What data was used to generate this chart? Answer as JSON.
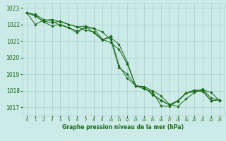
{
  "xlabel": "Graphe pression niveau de la mer (hPa)",
  "background_color": "#cceae7",
  "grid_color": "#aacccc",
  "line_color": "#1a6b1a",
  "ylim": [
    1016.5,
    1023.3
  ],
  "xlim": [
    -0.5,
    23.5
  ],
  "yticks": [
    1017,
    1018,
    1019,
    1020,
    1021,
    1022,
    1023
  ],
  "xticks": [
    0,
    1,
    2,
    3,
    4,
    5,
    6,
    7,
    8,
    9,
    10,
    11,
    12,
    13,
    14,
    15,
    16,
    17,
    18,
    19,
    20,
    21,
    22,
    23
  ],
  "series": [
    [
      1022.7,
      1022.6,
      1022.3,
      1022.2,
      1021.95,
      1021.8,
      1021.6,
      1021.8,
      1021.75,
      1021.1,
      1021.2,
      1020.8,
      1019.7,
      1018.3,
      1018.25,
      1018.0,
      1017.7,
      1017.2,
      1017.05,
      1017.5,
      1017.9,
      1018.05,
      1017.9,
      1017.4
    ],
    [
      1022.7,
      1022.55,
      1022.15,
      1021.9,
      1022.0,
      1021.8,
      1021.5,
      1021.85,
      1021.5,
      1021.05,
      1021.3,
      1019.5,
      1018.75,
      1018.3,
      1018.2,
      1017.8,
      1017.4,
      1017.15,
      1017.4,
      1017.85,
      1017.95,
      1018.1,
      1017.55,
      1017.45
    ],
    [
      1022.7,
      1022.5,
      1022.2,
      1022.1,
      1022.2,
      1022.0,
      1021.85,
      1021.9,
      1021.75,
      1021.55,
      1021.1,
      1019.4,
      1019.0,
      1018.3,
      1018.2,
      1017.75,
      1017.45,
      1017.15,
      1017.35,
      1017.85,
      1018.05,
      1018.0,
      1017.4,
      1017.45
    ],
    [
      1022.7,
      1022.0,
      1022.25,
      1022.3,
      1022.15,
      1022.0,
      1021.85,
      1021.65,
      1021.55,
      1021.1,
      1020.9,
      1020.5,
      1019.6,
      1018.3,
      1018.1,
      1017.95,
      1017.1,
      1017.05,
      1017.4,
      1017.85,
      1018.0,
      1017.95,
      1017.4,
      1017.45
    ]
  ]
}
